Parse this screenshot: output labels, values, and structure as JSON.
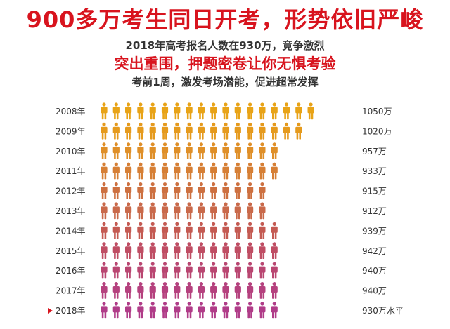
{
  "header": {
    "title": "900多万考生同日开考，形势依旧严峻",
    "subtitle1": "2018年高考报名人数在930万，竞争激烈",
    "subtitle2": "突出重围，押题密卷让你无惧考验",
    "subtitle3": "考前1周，激发考场潜能，促进超常发挥"
  },
  "chart_data": {
    "type": "bar",
    "categories": [
      "2008年",
      "2009年",
      "2010年",
      "2011年",
      "2012年",
      "2013年",
      "2014年",
      "2015年",
      "2016年",
      "2017年",
      "2018年"
    ],
    "values": [
      1050,
      1020,
      957,
      933,
      915,
      912,
      939,
      942,
      940,
      940,
      930
    ],
    "value_labels": [
      "1050万",
      "1020万",
      "957万",
      "933万",
      "915万",
      "912万",
      "939万",
      "942万",
      "940万",
      "940万",
      "930万水平"
    ],
    "icon_counts": [
      18,
      17,
      15,
      15,
      14,
      14,
      15,
      15,
      15,
      15,
      15
    ],
    "highlight_index": 10,
    "marker_icon": "triangle-right-icon",
    "row_colors": [
      "#e8a317",
      "#e59a1d",
      "#df8f28",
      "#d67f35",
      "#cd7040",
      "#c9694a",
      "#c45a52",
      "#bf4d63",
      "#b94671",
      "#b5417e",
      "#b03c88"
    ],
    "highlight_color": "#d8141e"
  }
}
